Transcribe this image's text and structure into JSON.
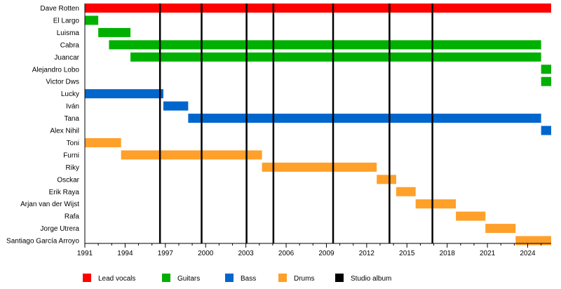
{
  "chart_data": {
    "type": "bar",
    "subtype": "timeline",
    "title": "",
    "xlim": [
      1991,
      2025.75
    ],
    "x_ticks_major": [
      "1991",
      "1994",
      "1997",
      "2000",
      "2003",
      "2006",
      "2009",
      "2012",
      "2015",
      "2018",
      "2021",
      "2024"
    ],
    "grid": false,
    "legend_placement": "bottom",
    "colors": {
      "Lead vocals": "#ff0000",
      "Guitars": "#00b000",
      "Bass": "#0066cc",
      "Drums": "#ffa02a",
      "Studio album": "#000000"
    },
    "legend": [
      "Lead vocals",
      "Guitars",
      "Bass",
      "Drums",
      "Studio album"
    ],
    "members": [
      {
        "name": "Dave Rotten",
        "role": "Lead vocals",
        "start": 1991,
        "end": 2025.75
      },
      {
        "name": "El Largo",
        "role": "Guitars",
        "start": 1991,
        "end": 1992
      },
      {
        "name": "Luisma",
        "role": "Guitars",
        "start": 1992,
        "end": 1994.4
      },
      {
        "name": "Cabra",
        "role": "Guitars",
        "start": 1992.8,
        "end": 2025
      },
      {
        "name": "Juancar",
        "role": "Guitars",
        "start": 1994.4,
        "end": 2025
      },
      {
        "name": "Alejandro Lobo",
        "role": "Guitars",
        "start": 2025,
        "end": 2025.75
      },
      {
        "name": "Victor Dws",
        "role": "Guitars",
        "start": 2025,
        "end": 2025.75
      },
      {
        "name": "Lucky",
        "role": "Bass",
        "start": 1991,
        "end": 1996.85
      },
      {
        "name": "Iván",
        "role": "Bass",
        "start": 1996.85,
        "end": 1998.7
      },
      {
        "name": "Tana",
        "role": "Bass",
        "start": 1998.7,
        "end": 2025
      },
      {
        "name": "Alex Nihil",
        "role": "Bass",
        "start": 2025,
        "end": 2025.75
      },
      {
        "name": "Toni",
        "role": "Drums",
        "start": 1991,
        "end": 1993.7
      },
      {
        "name": "Furni",
        "role": "Drums",
        "start": 1993.7,
        "end": 2004.2
      },
      {
        "name": "Riky",
        "role": "Drums",
        "start": 2004.2,
        "end": 2012.75
      },
      {
        "name": "Osckar",
        "role": "Drums",
        "start": 2012.75,
        "end": 2014.2
      },
      {
        "name": "Erik Raya",
        "role": "Drums",
        "start": 2014.2,
        "end": 2015.65
      },
      {
        "name": "Arjan van der Wijst",
        "role": "Drums",
        "start": 2015.65,
        "end": 2018.65
      },
      {
        "name": "Rafa",
        "role": "Drums",
        "start": 2018.65,
        "end": 2020.85
      },
      {
        "name": "Jorge Utrera",
        "role": "Drums",
        "start": 2020.85,
        "end": 2023.1
      },
      {
        "name": "Santiago García Arroyo",
        "role": "Drums",
        "start": 2023.1,
        "end": 2025.75
      }
    ],
    "studio_albums": [
      1996.6,
      1999.7,
      2003.05,
      2005.05,
      2009.5,
      2013.7,
      2016.9
    ]
  }
}
